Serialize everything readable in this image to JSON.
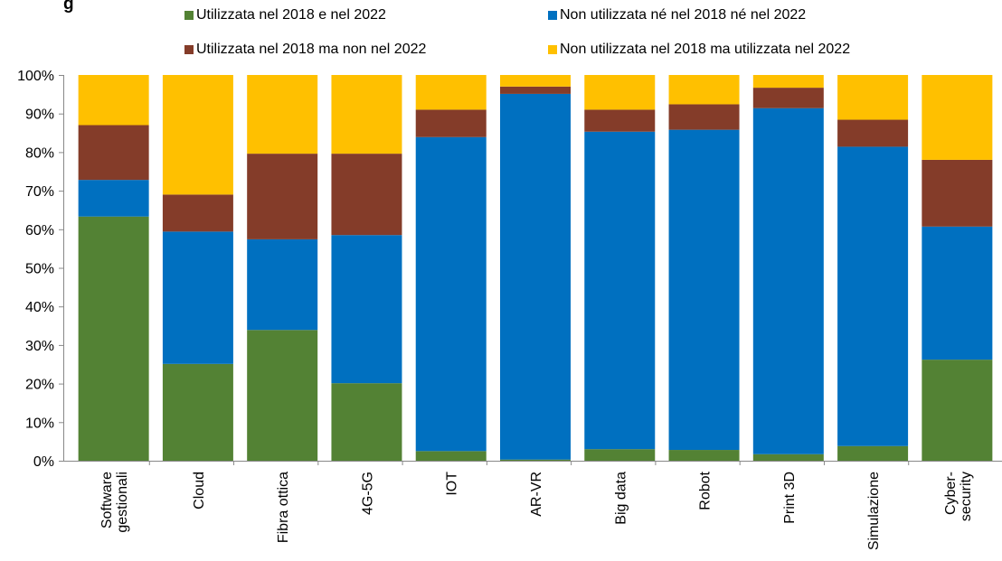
{
  "title_fragment": "g",
  "title_rest": "(…   …)",
  "chart_data": {
    "type": "bar",
    "stacked": true,
    "ylim": [
      0,
      100
    ],
    "yticks": [
      "0%",
      "10%",
      "20%",
      "30%",
      "40%",
      "50%",
      "60%",
      "70%",
      "80%",
      "90%",
      "100%"
    ],
    "categories": [
      "Software gestionali",
      "Cloud",
      "Fibra ottica",
      "4G-5G",
      "IOT",
      "AR-VR",
      "Big data",
      "Robot",
      "Print 3D",
      "Simulazione",
      "Cyber- security"
    ],
    "category_lines": [
      [
        "Software",
        "gestionali"
      ],
      [
        "Cloud"
      ],
      [
        "Fibra ottica"
      ],
      [
        "4G-5G"
      ],
      [
        "IOT"
      ],
      [
        "AR-VR"
      ],
      [
        "Big data"
      ],
      [
        "Robot"
      ],
      [
        "Print 3D"
      ],
      [
        "Simulazione"
      ],
      [
        "Cyber-",
        "security"
      ]
    ],
    "legend_position": "top",
    "series": [
      {
        "name": "Utilizzata nel 2018 e nel 2022",
        "color": "#538234",
        "values": [
          63.3,
          25.1,
          33.9,
          20.1,
          2.5,
          0.3,
          3.0,
          2.8,
          1.7,
          3.8,
          26.2
        ]
      },
      {
        "name": "Non utilizzata né nel 2018 né nel 2022",
        "color": "#0070C0",
        "values": [
          9.5,
          34.3,
          23.5,
          38.4,
          81.4,
          94.8,
          82.3,
          83.0,
          89.7,
          77.6,
          34.5
        ]
      },
      {
        "name": "Utilizzata nel 2018 ma non nel 2022",
        "color": "#843C29",
        "values": [
          14.2,
          9.6,
          22.2,
          21.1,
          7.1,
          1.9,
          5.7,
          6.6,
          5.3,
          7.0,
          17.3
        ]
      },
      {
        "name": "Non utilizzata nel 2018 ma utilizzata nel 2022",
        "color": "#FFC000",
        "values": [
          13.0,
          31.0,
          20.4,
          20.4,
          9.0,
          3.0,
          9.0,
          7.6,
          3.3,
          11.6,
          22.0
        ]
      }
    ]
  }
}
